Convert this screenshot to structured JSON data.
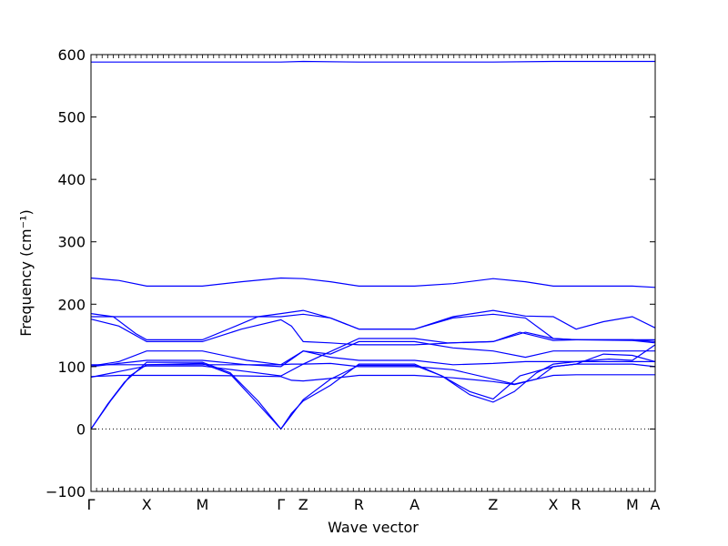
{
  "chart_data": {
    "type": "line",
    "title": "",
    "xlabel": "Wave vector",
    "ylabel": "Frequency (cm⁻¹)",
    "ylim": [
      -100,
      600
    ],
    "yticks": [
      -100,
      0,
      100,
      200,
      300,
      400,
      500,
      600
    ],
    "y_tick_labels": [
      "−100",
      "0",
      "100",
      "200",
      "300",
      "400",
      "500",
      "600"
    ],
    "xlim": [
      0,
      10.13
    ],
    "x_labels": [
      {
        "label": "Γ",
        "x": 0
      },
      {
        "label": "X",
        "x": 1
      },
      {
        "label": "M",
        "x": 2
      },
      {
        "label": "Γ",
        "x": 3.41
      },
      {
        "label": "Z",
        "x": 3.81
      },
      {
        "label": "R",
        "x": 4.81
      },
      {
        "label": "A",
        "x": 5.81
      },
      {
        "label": "Z",
        "x": 7.22
      },
      {
        "label": "X",
        "x": 8.3
      },
      {
        "label": "R",
        "x": 8.71
      },
      {
        "label": "M",
        "x": 9.72
      },
      {
        "label": "A",
        "x": 10.13
      }
    ],
    "zero_line": 0,
    "line_color": "#0000ff",
    "grid": false,
    "series": [
      {
        "points": [
          [
            0,
            588
          ],
          [
            1,
            588
          ],
          [
            2,
            588
          ],
          [
            3.41,
            588
          ],
          [
            3.81,
            589
          ],
          [
            4.81,
            588
          ],
          [
            5.81,
            588
          ],
          [
            7.22,
            588
          ],
          [
            8.3,
            589
          ],
          [
            8.71,
            589
          ],
          [
            9.72,
            589
          ],
          [
            10.13,
            589
          ]
        ]
      },
      {
        "points": [
          [
            0,
            242
          ],
          [
            0.5,
            238
          ],
          [
            1,
            229
          ],
          [
            2,
            229
          ],
          [
            2.7,
            236
          ],
          [
            3.41,
            242
          ],
          [
            3.81,
            241
          ],
          [
            4.3,
            236
          ],
          [
            4.81,
            229
          ],
          [
            5.81,
            229
          ],
          [
            6.5,
            233
          ],
          [
            7.22,
            241
          ],
          [
            7.8,
            236
          ],
          [
            8.3,
            229
          ],
          [
            8.71,
            229
          ],
          [
            9.72,
            229
          ],
          [
            10.13,
            227
          ]
        ]
      },
      {
        "points": [
          [
            0,
            185
          ],
          [
            0.4,
            180
          ],
          [
            0.8,
            153
          ],
          [
            1,
            143
          ],
          [
            2,
            143
          ],
          [
            2.6,
            165
          ],
          [
            3.0,
            180
          ],
          [
            3.41,
            185
          ],
          [
            3.81,
            190
          ],
          [
            4.3,
            178
          ],
          [
            4.81,
            160
          ],
          [
            5.81,
            160
          ],
          [
            6.5,
            180
          ],
          [
            7.22,
            190
          ],
          [
            7.8,
            181
          ],
          [
            8.3,
            180
          ],
          [
            8.71,
            160
          ],
          [
            9.2,
            172
          ],
          [
            9.72,
            180
          ],
          [
            10.13,
            162
          ]
        ]
      },
      {
        "points": [
          [
            0,
            180
          ],
          [
            1,
            180
          ],
          [
            2,
            180
          ],
          [
            3.41,
            180
          ],
          [
            3.81,
            184
          ],
          [
            4.3,
            178
          ],
          [
            4.81,
            160
          ],
          [
            5.81,
            160
          ],
          [
            6.5,
            178
          ],
          [
            7.22,
            184
          ],
          [
            7.8,
            178
          ],
          [
            8.3,
            145
          ],
          [
            8.71,
            143
          ],
          [
            9.72,
            143
          ],
          [
            10.13,
            143
          ]
        ]
      },
      {
        "points": [
          [
            0,
            176
          ],
          [
            0.5,
            165
          ],
          [
            1,
            140
          ],
          [
            2,
            140
          ],
          [
            2.7,
            160
          ],
          [
            3.41,
            175
          ],
          [
            3.6,
            165
          ],
          [
            3.81,
            140
          ],
          [
            4.3,
            138
          ],
          [
            4.81,
            135
          ],
          [
            5.81,
            135
          ],
          [
            6.5,
            138
          ],
          [
            7.22,
            140
          ],
          [
            7.8,
            155
          ],
          [
            8.3,
            145
          ],
          [
            8.71,
            143
          ],
          [
            9.72,
            143
          ],
          [
            10.13,
            140
          ]
        ]
      },
      {
        "points": [
          [
            0,
            103
          ],
          [
            0.5,
            103
          ],
          [
            1,
            103
          ],
          [
            2,
            103
          ],
          [
            3.41,
            103
          ],
          [
            3.6,
            104
          ],
          [
            3.81,
            104
          ],
          [
            4.2,
            120
          ],
          [
            4.81,
            145
          ],
          [
            5.81,
            145
          ],
          [
            6.4,
            138
          ],
          [
            7.22,
            140
          ],
          [
            7.7,
            155
          ],
          [
            8.3,
            142
          ],
          [
            8.71,
            143
          ],
          [
            9.72,
            142
          ],
          [
            10.13,
            138
          ]
        ]
      },
      {
        "points": [
          [
            0,
            101
          ],
          [
            0.5,
            108
          ],
          [
            1,
            125
          ],
          [
            2,
            125
          ],
          [
            2.8,
            110
          ],
          [
            3.41,
            103
          ],
          [
            3.81,
            125
          ],
          [
            4.3,
            120
          ],
          [
            4.81,
            140
          ],
          [
            5.81,
            140
          ],
          [
            6.5,
            130
          ],
          [
            7.22,
            125
          ],
          [
            7.8,
            115
          ],
          [
            8.3,
            125
          ],
          [
            8.71,
            125
          ],
          [
            9.72,
            125
          ],
          [
            10.13,
            125
          ]
        ]
      },
      {
        "points": [
          [
            0,
            100
          ],
          [
            0.5,
            105
          ],
          [
            1,
            110
          ],
          [
            2,
            110
          ],
          [
            2.8,
            103
          ],
          [
            3.41,
            100
          ],
          [
            3.81,
            125
          ],
          [
            4.3,
            115
          ],
          [
            4.81,
            110
          ],
          [
            5.81,
            110
          ],
          [
            6.5,
            103
          ],
          [
            7.22,
            105
          ],
          [
            7.8,
            108
          ],
          [
            8.3,
            108
          ],
          [
            8.71,
            108
          ],
          [
            9.72,
            108
          ],
          [
            10.13,
            108
          ]
        ]
      },
      {
        "points": [
          [
            0,
            0
          ],
          [
            0.3,
            40
          ],
          [
            0.6,
            75
          ],
          [
            1,
            107
          ],
          [
            2,
            107
          ],
          [
            2.5,
            90
          ],
          [
            3.0,
            45
          ],
          [
            3.41,
            0
          ],
          [
            3.6,
            25
          ],
          [
            3.81,
            45
          ],
          [
            4.3,
            70
          ],
          [
            4.81,
            104
          ],
          [
            5.81,
            104
          ],
          [
            6.3,
            85
          ],
          [
            6.8,
            55
          ],
          [
            7.22,
            43
          ],
          [
            7.6,
            60
          ],
          [
            8.0,
            90
          ],
          [
            8.3,
            104
          ],
          [
            8.71,
            108
          ],
          [
            9.3,
            112
          ],
          [
            9.72,
            110
          ],
          [
            10.13,
            135
          ]
        ]
      },
      {
        "points": [
          [
            0,
            0
          ],
          [
            0.35,
            45
          ],
          [
            0.7,
            85
          ],
          [
            1,
            103
          ],
          [
            2,
            105
          ],
          [
            2.5,
            88
          ],
          [
            3.0,
            40
          ],
          [
            3.41,
            0
          ],
          [
            3.6,
            22
          ],
          [
            3.81,
            47
          ],
          [
            4.3,
            80
          ],
          [
            4.81,
            102
          ],
          [
            5.81,
            102
          ],
          [
            6.3,
            85
          ],
          [
            6.8,
            60
          ],
          [
            7.22,
            48
          ],
          [
            7.7,
            85
          ],
          [
            8.3,
            100
          ],
          [
            8.71,
            104
          ],
          [
            9.72,
            104
          ],
          [
            10.13,
            100
          ]
        ]
      },
      {
        "points": [
          [
            0,
            83
          ],
          [
            0.5,
            92
          ],
          [
            1,
            101
          ],
          [
            2,
            101
          ],
          [
            2.8,
            92
          ],
          [
            3.41,
            85
          ],
          [
            3.81,
            104
          ],
          [
            4.3,
            105
          ],
          [
            4.81,
            100
          ],
          [
            5.81,
            100
          ],
          [
            6.5,
            95
          ],
          [
            7.22,
            80
          ],
          [
            7.6,
            72
          ],
          [
            8.0,
            80
          ],
          [
            8.3,
            100
          ],
          [
            8.71,
            104
          ],
          [
            9.2,
            120
          ],
          [
            9.72,
            118
          ],
          [
            10.13,
            108
          ]
        ]
      },
      {
        "points": [
          [
            0,
            84
          ],
          [
            0.5,
            86
          ],
          [
            1,
            86
          ],
          [
            2,
            86
          ],
          [
            2.8,
            85
          ],
          [
            3.41,
            84
          ],
          [
            3.6,
            78
          ],
          [
            3.81,
            77
          ],
          [
            4.3,
            81
          ],
          [
            4.81,
            86
          ],
          [
            5.81,
            86
          ],
          [
            6.5,
            82
          ],
          [
            7.22,
            76
          ],
          [
            7.6,
            71
          ],
          [
            8.0,
            80
          ],
          [
            8.3,
            86
          ],
          [
            8.71,
            87
          ],
          [
            9.72,
            87
          ],
          [
            10.13,
            87
          ]
        ]
      }
    ]
  }
}
